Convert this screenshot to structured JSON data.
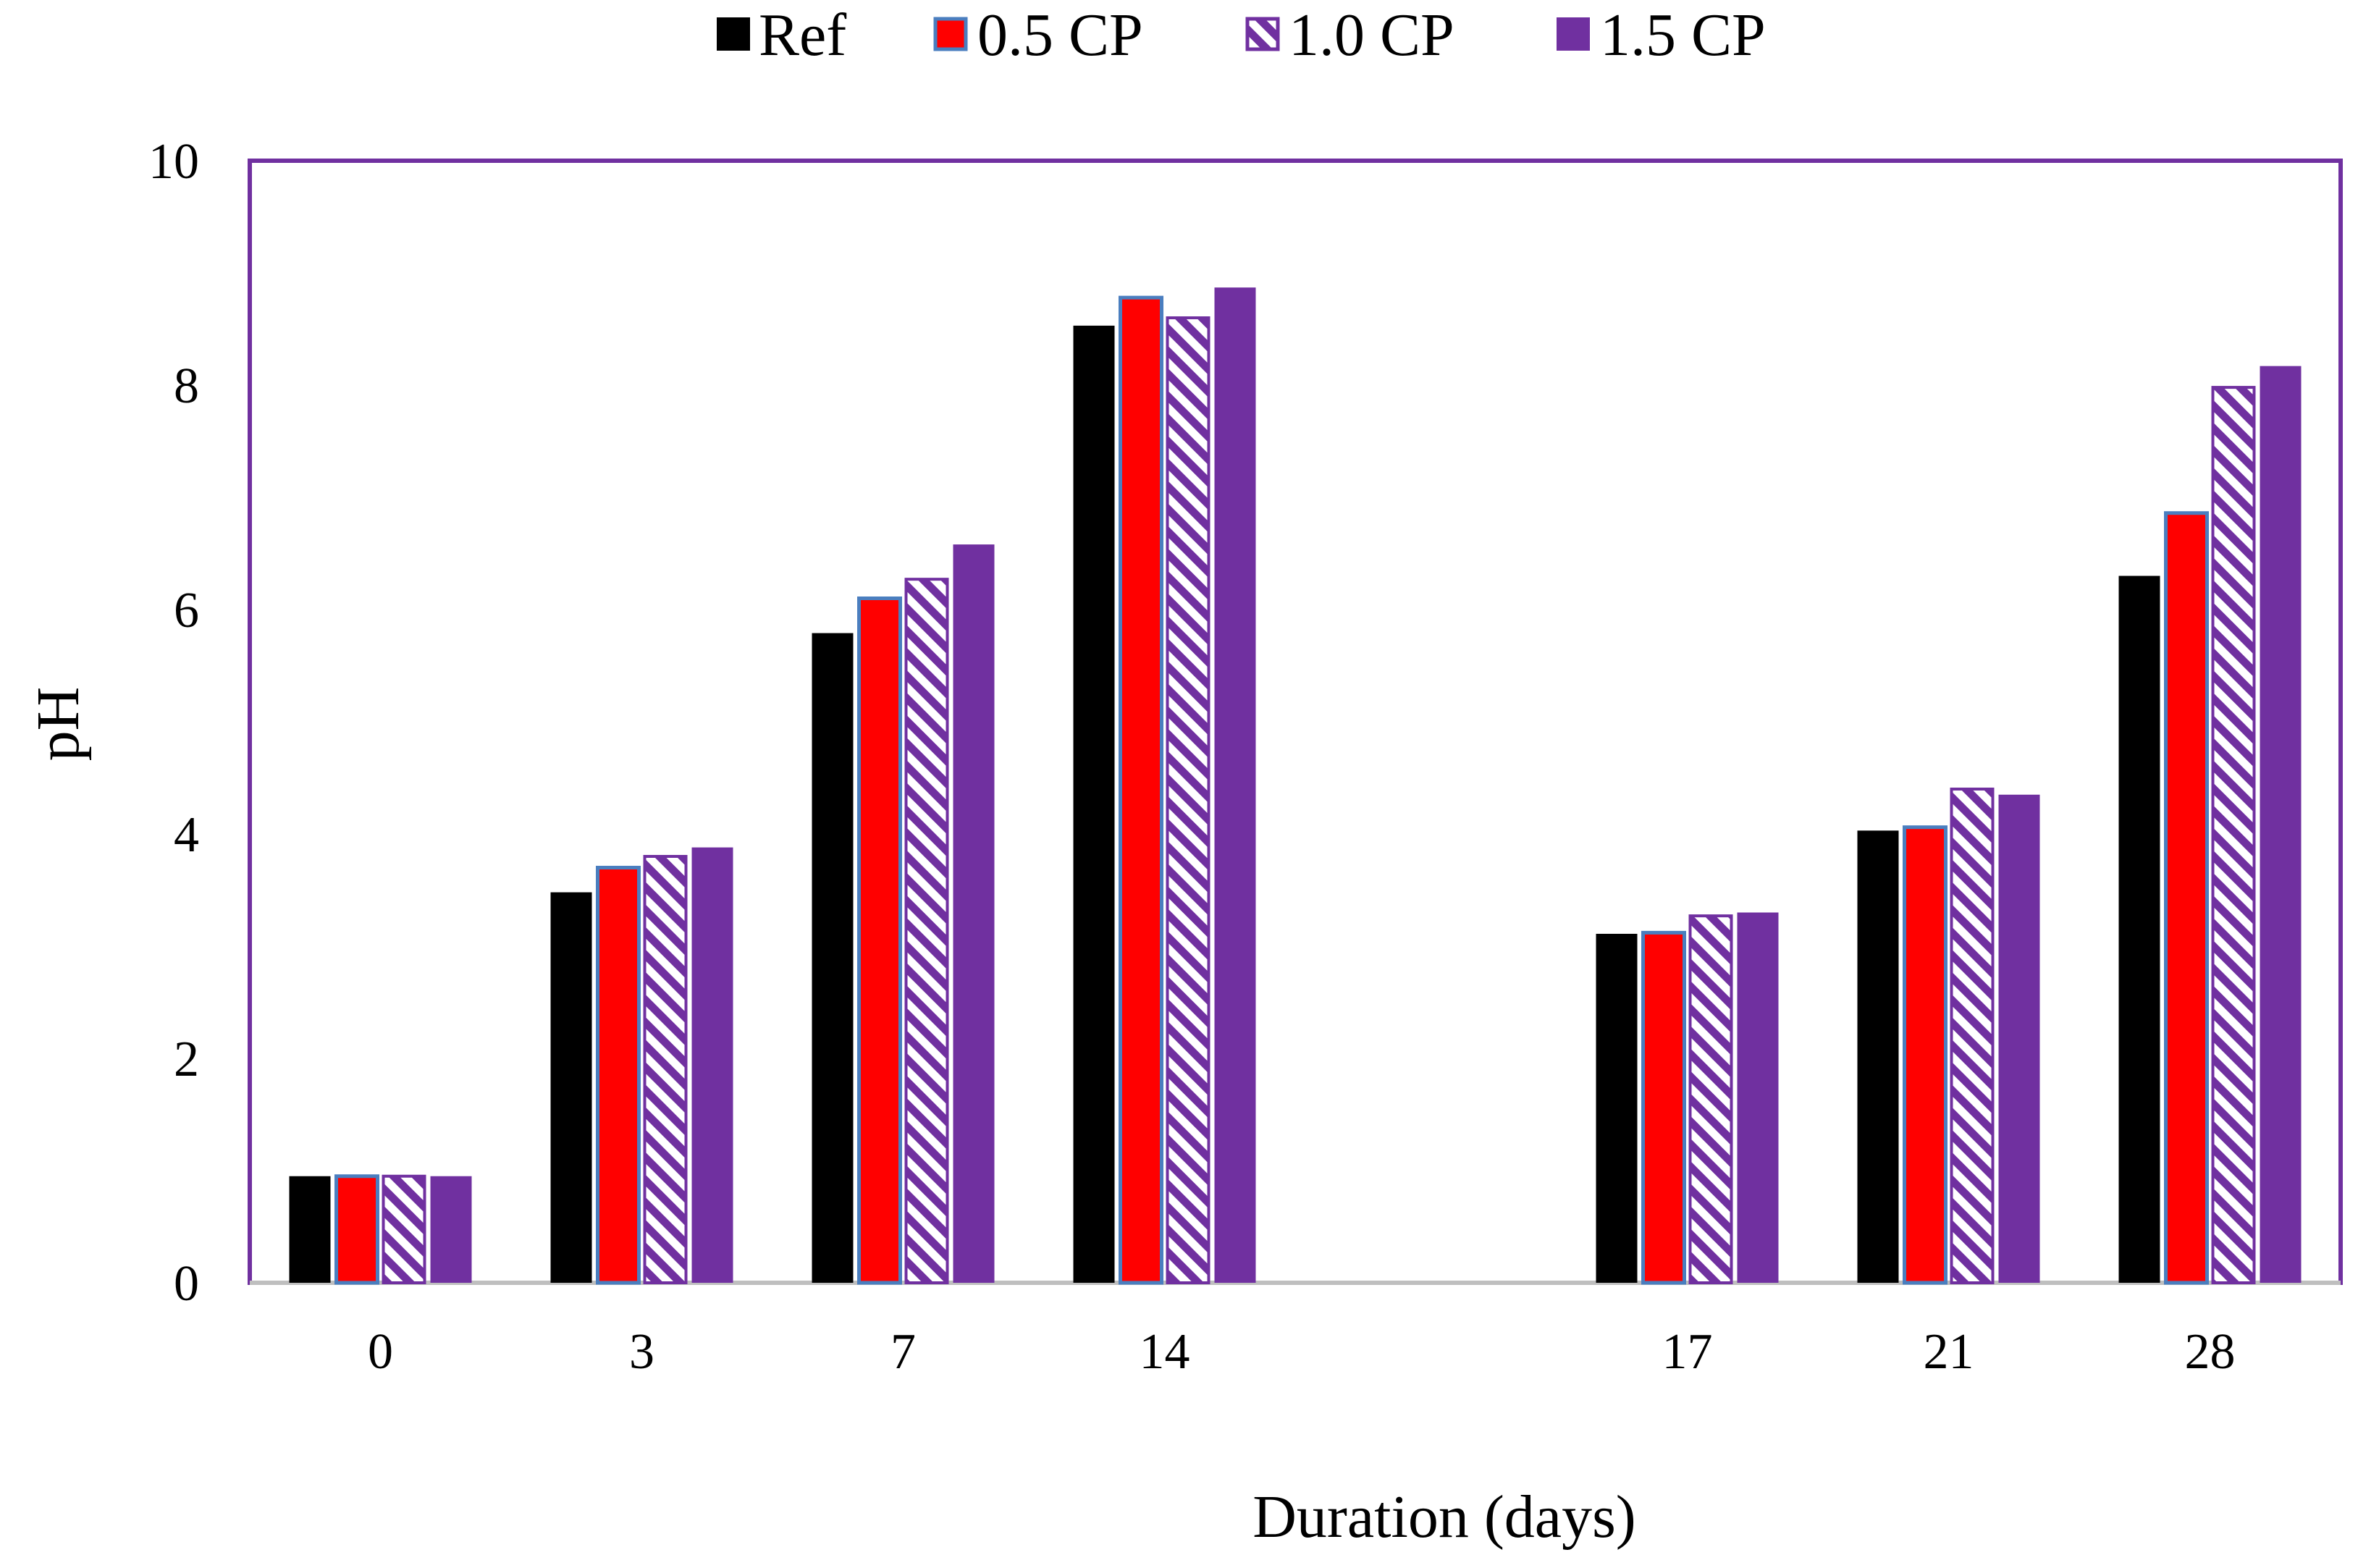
{
  "chart_data": {
    "type": "bar",
    "title": "",
    "xlabel": "Duration (days)",
    "ylabel": "pH",
    "ylim": [
      0,
      10
    ],
    "yticks": [
      0,
      2,
      4,
      6,
      8,
      10
    ],
    "legend_position": "top-center",
    "grid": false,
    "categories": [
      "0",
      "3",
      "7",
      "14",
      "",
      "17",
      "21",
      "28"
    ],
    "series": [
      {
        "name": "Ref",
        "color": "#000000",
        "pattern": "solid",
        "values": [
          0.95,
          3.48,
          5.79,
          8.53,
          null,
          3.11,
          4.03,
          6.3
        ]
      },
      {
        "name": "0.5 CP",
        "color": "#ff0000",
        "outline": "#4a7ebf",
        "pattern": "solid",
        "values": [
          0.95,
          3.7,
          6.1,
          8.78,
          null,
          3.12,
          4.06,
          6.86
        ]
      },
      {
        "name": "1.0 CP",
        "color": "#7030a0",
        "pattern": "hatch",
        "values": [
          0.95,
          3.8,
          6.27,
          8.6,
          null,
          3.27,
          4.4,
          7.98
        ]
      },
      {
        "name": "1.5 CP",
        "color": "#7030a0",
        "pattern": "solid",
        "values": [
          0.95,
          3.88,
          6.58,
          8.87,
          null,
          3.3,
          4.35,
          8.17
        ]
      }
    ]
  }
}
